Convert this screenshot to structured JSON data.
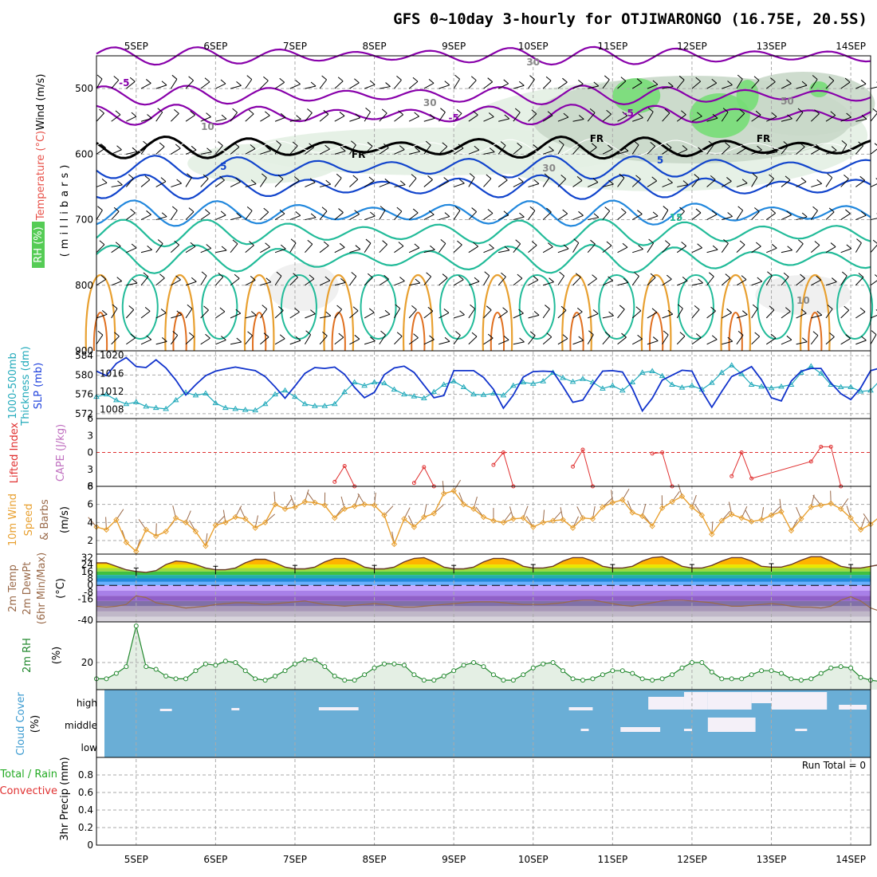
{
  "title": "GFS 0~10day 3-hourly for OTJIWARONGO (16.75E, 20.5S)",
  "date_labels": [
    "5SEP",
    "6SEP",
    "7SEP",
    "8SEP",
    "9SEP",
    "10SEP",
    "11SEP",
    "12SEP",
    "13SEP",
    "14SEP"
  ],
  "colors": {
    "rh_green": "#77dd77",
    "rh_light": "#e3f0e3",
    "rh_mid": "#c9d8c9",
    "temp_purple": "#8800aa",
    "temp_blue": "#1144cc",
    "temp_teal": "#22bb99",
    "temp_orange": "#e8a030",
    "temp_magenta": "#cc0066",
    "freezing": "#000000",
    "slp": "#1133cc",
    "thickness": "#22aabb",
    "lifted_index": "#e03030",
    "wind10m": "#e8a030",
    "dewpoint": "#9a6a4a",
    "rh2m": "#22882e",
    "cloud": "#6aaed6",
    "grid": "#aaaaaa"
  },
  "labels": {
    "wind_ms": "Wind (m/s)",
    "temperature": "Temperature (°C)",
    "rh_pct": "RH (%)",
    "millibars": "(millibars)",
    "thickness_line1": "1000-500mb",
    "thickness_line2": "Thickness (dm)",
    "slp": "SLP (mb)",
    "lifted_index": "Lifted Index",
    "cape": "CAPE (J/kg)",
    "wind10m_line1": "10m Wind",
    "wind10m_line2": "Speed",
    "wind10m_line3": "& Barbs",
    "wind10m_unit": "(m/s)",
    "temp2m_line1": "2m Temp",
    "temp2m_line2": "2m DewPt",
    "temp2m_line3": "(6hr Min/Max)",
    "temp2m_unit": "(°C)",
    "rh2m": "2m RH",
    "rh2m_unit": "(%)",
    "cloud_cover": "Cloud Cover",
    "cloud_unit": "(%)",
    "precip_line1": "Total / Rain",
    "precip_line2": "Convective",
    "precip_main": "3hr Precip (mm)",
    "run_total": "Run Total = 0",
    "contour_labels": [
      "-5",
      "-5",
      "-5",
      "5",
      "5",
      "15",
      "FR",
      "FR",
      "FR",
      "30",
      "30",
      "30",
      "10",
      "10",
      "50"
    ]
  },
  "chart_data": [
    {
      "type": "heatmap",
      "panel": "upper-air cross section (temperature contours, RH shading, wind barbs)",
      "ylabel": "(millibars)",
      "y_ticks": [
        500,
        600,
        700,
        800,
        900
      ],
      "ylim": [
        900,
        450
      ],
      "isotherm_levels_mb": [
        {
          "temp_c": -10,
          "level_mb": 450
        },
        {
          "temp_c": -5,
          "level_mb": 510
        },
        {
          "temp_c": -5,
          "level_mb": 540
        },
        {
          "temp_c": 0,
          "level_mb": 590,
          "label": "FR"
        },
        {
          "temp_c": 5,
          "level_mb": 620
        },
        {
          "temp_c": 5,
          "level_mb": 650
        },
        {
          "temp_c": 10,
          "level_mb": 690
        },
        {
          "temp_c": 15,
          "level_mb": 720
        },
        {
          "temp_c": 20,
          "level_mb": 760
        }
      ],
      "lower_level_temp_contours_c": [
        20,
        25,
        30,
        35
      ]
    },
    {
      "type": "line",
      "panel": "1000-500mb thickness and sea-level pressure",
      "series": [
        {
          "name": "1000-500mb Thickness (dm)",
          "axis": "left",
          "ylim": [
            571,
            585
          ],
          "y_ticks": [
            572,
            576,
            580,
            584
          ],
          "values": [
            575.5,
            576,
            574.8,
            574,
            574.4,
            573.5,
            573.2,
            573,
            574.8,
            576.4,
            575.8,
            576.2,
            574.2,
            573.2,
            573,
            572.8,
            572.7,
            574,
            576,
            576.8,
            575.5,
            574,
            573.6,
            573.6,
            574,
            576.5,
            578.5,
            577.8,
            578.5,
            578.3,
            577,
            576,
            575.6,
            575.2,
            576.5,
            578,
            578.7,
            577.5,
            576,
            575.9,
            576.2,
            575.8,
            577.8,
            578.5,
            578.2,
            578.7,
            580.5,
            579.4,
            578.6,
            579.2,
            578.5,
            577.2,
            577.8,
            576.8,
            578.5,
            580.5,
            580.8,
            579.8,
            578,
            577.4,
            577.8,
            577,
            578.4,
            580.5,
            582,
            580.2,
            578,
            577.6,
            577.3,
            577.6,
            578,
            580.5,
            581.8,
            580.3,
            578,
            577.5,
            577.5,
            576.6,
            576.8,
            579,
            582.3,
            581.5,
            580,
            578,
            577.6,
            578
          ]
        },
        {
          "name": "SLP (mb)",
          "axis": "right",
          "ylim": [
            1006,
            1021
          ],
          "y_ticks": [
            1008,
            1012,
            1016,
            1020
          ],
          "values": [
            1016.5,
            1015.5,
            1018.2,
            1019.5,
            1017.5,
            1017.3,
            1019,
            1017.2,
            1014.5,
            1011.2,
            1013.5,
            1015.5,
            1016.5,
            1017,
            1017.4,
            1017,
            1016.6,
            1015.3,
            1013,
            1010.5,
            1013.2,
            1016,
            1017.3,
            1017.1,
            1017.4,
            1015.8,
            1012.9,
            1010.6,
            1011.8,
            1015.7,
            1017.2,
            1017.6,
            1016.2,
            1013.4,
            1010.6,
            1011.1,
            1016.6,
            1016.6,
            1016.6,
            1015.1,
            1012.5,
            1008.3,
            1011.2,
            1015.2,
            1016.4,
            1016.5,
            1016.4,
            1013.1,
            1009.6,
            1010.1,
            1013.5,
            1016.5,
            1016.6,
            1016.3,
            1012.6,
            1007.7,
            1010.5,
            1014.5,
            1015.6,
            1016.7,
            1016.5,
            1012.1,
            1008.5,
            1012,
            1015.3,
            1016.3,
            1017.5,
            1014.6,
            1010.6,
            1009.9,
            1014.3,
            1016.5,
            1017.1,
            1017.1,
            1013.9,
            1011.5,
            1010.2,
            1012.8,
            1016.6,
            1017.2,
            1016.7,
            1013.5,
            1012.1,
            1015,
            1016.5,
            1017
          ]
        }
      ]
    },
    {
      "type": "line",
      "panel": "Lifted Index and CAPE",
      "series": [
        {
          "name": "Lifted Index",
          "ylim": [
            6,
            -6
          ],
          "y_ticks": [
            -6,
            -3,
            0,
            3,
            6
          ],
          "points": [
            {
              "x_day": 7.5,
              "value": 5.2
            },
            {
              "x_day": 7.625,
              "value": 2.4
            },
            {
              "x_day": 7.75,
              "value": 6
            },
            {
              "x_day": 8.5,
              "value": 5.4
            },
            {
              "x_day": 8.625,
              "value": 2.6
            },
            {
              "x_day": 8.75,
              "value": 6
            },
            {
              "x_day": 9.5,
              "value": 2.2
            },
            {
              "x_day": 9.625,
              "value": 0
            },
            {
              "x_day": 9.75,
              "value": 6
            },
            {
              "x_day": 10.5,
              "value": 2.5
            },
            {
              "x_day": 10.625,
              "value": -0.5
            },
            {
              "x_day": 10.75,
              "value": 6
            },
            {
              "x_day": 11.5,
              "value": 0.2
            },
            {
              "x_day": 11.625,
              "value": 0
            },
            {
              "x_day": 11.75,
              "value": 6
            },
            {
              "x_day": 12.5,
              "value": 4.2
            },
            {
              "x_day": 12.625,
              "value": 0
            },
            {
              "x_day": 12.75,
              "value": 4.6
            },
            {
              "x_day": 13.5,
              "value": 1.6
            },
            {
              "x_day": 13.625,
              "value": -1
            },
            {
              "x_day": 13.75,
              "value": -1
            },
            {
              "x_day": 13.875,
              "value": 6
            }
          ]
        }
      ]
    },
    {
      "type": "line",
      "panel": "10m wind speed and barbs",
      "ylim": [
        0,
        8
      ],
      "y_ticks": [
        2,
        4,
        6,
        8
      ],
      "series": [
        {
          "name": "10m Wind Speed (m/s)",
          "values": [
            3.5,
            3.2,
            4.3,
            1.8,
            0.8,
            3.2,
            2.5,
            3,
            4.5,
            4,
            3,
            1.4,
            3.7,
            4,
            4.6,
            4.4,
            3.4,
            4,
            6,
            5.5,
            5.7,
            6.3,
            6.2,
            5.9,
            4.5,
            5.5,
            5.8,
            6,
            5.9,
            4.8,
            1.6,
            4.4,
            3.5,
            4.6,
            5,
            7.2,
            7.5,
            6,
            5.5,
            4.6,
            4.2,
            4,
            4.4,
            4.5,
            3.5,
            4,
            4.2,
            4.3,
            3.4,
            4.5,
            4.4,
            5.7,
            6.2,
            6.5,
            5.1,
            4.7,
            3.6,
            5.6,
            6.3,
            6.9,
            5.7,
            4.8,
            2.7,
            4.2,
            4.9,
            4.5,
            4.1,
            4.3,
            4.8,
            5.2,
            3.1,
            4.4,
            5.7,
            5.9,
            6.1,
            5.5,
            4.5,
            3.2,
            3.8,
            4.7,
            5.2,
            6.1,
            5,
            6.5,
            6.9,
            6.8
          ]
        }
      ]
    },
    {
      "type": "area",
      "panel": "2m temperature and dewpoint",
      "ylim": [
        -40,
        36
      ],
      "y_ticks": [
        32,
        24,
        16,
        8,
        0,
        -8,
        -16,
        -40
      ],
      "series": [
        {
          "name": "2m Temp (°C)",
          "values": [
            26,
            26,
            22,
            18,
            16,
            15,
            17,
            24,
            28,
            27,
            24,
            20,
            18,
            18,
            20,
            26,
            30,
            30,
            26,
            21,
            19,
            19,
            21,
            27,
            31,
            31,
            27,
            21,
            19,
            19,
            21,
            27,
            31,
            32,
            27,
            21,
            19,
            19,
            21,
            27,
            31,
            31,
            28,
            22,
            20,
            20,
            22,
            28,
            32,
            32,
            28,
            22,
            20,
            20,
            22,
            28,
            32,
            33,
            28,
            22,
            20,
            20,
            23,
            28,
            32,
            32,
            28,
            22,
            21,
            21,
            24,
            29,
            33,
            33,
            28,
            22,
            20,
            20,
            22,
            24,
            23,
            22,
            21,
            21,
            21,
            23
          ]
        },
        {
          "name": "2m DewPt (°C)",
          "values": [
            -24,
            -25,
            -24,
            -22,
            -12,
            -14,
            -20,
            -22,
            -24,
            -26,
            -25,
            -24,
            -22,
            -21,
            -20,
            -20,
            -21,
            -22,
            -21,
            -20,
            -19,
            -18,
            -20,
            -22,
            -23,
            -24,
            -23,
            -22,
            -21,
            -22,
            -24,
            -25,
            -25,
            -24,
            -23,
            -22,
            -21,
            -20,
            -19,
            -19,
            -19,
            -20,
            -21,
            -22,
            -22,
            -22,
            -21,
            -20,
            -18,
            -17,
            -17,
            -19,
            -21,
            -23,
            -24,
            -22,
            -20,
            -18,
            -17,
            -17,
            -18,
            -19,
            -20,
            -22,
            -24,
            -24,
            -23,
            -22,
            -21,
            -22,
            -24,
            -25,
            -25,
            -26,
            -24,
            -17,
            -13,
            -18,
            -26,
            -30,
            -25,
            -22,
            -24,
            -28,
            -33,
            -38
          ]
        }
      ]
    },
    {
      "type": "area",
      "panel": "2m relative humidity",
      "ylim": [
        0,
        50
      ],
      "y_ticks": [
        20
      ],
      "series": [
        {
          "name": "2m RH (%)",
          "values": [
            8,
            8,
            12,
            17,
            47,
            17,
            15,
            10,
            8,
            8,
            14,
            19,
            18,
            21,
            20,
            14,
            8,
            7,
            10,
            14,
            19,
            22,
            22,
            17,
            10,
            7,
            7,
            11,
            16,
            19,
            19,
            18,
            11,
            7,
            7,
            10,
            14,
            18,
            20,
            17,
            11,
            7,
            7,
            11,
            16,
            19,
            20,
            14,
            8,
            7,
            8,
            11,
            14,
            14,
            12,
            8,
            7,
            8,
            11,
            16,
            20,
            20,
            13,
            8,
            8,
            8,
            11,
            14,
            14,
            12,
            8,
            7,
            8,
            12,
            16,
            17,
            16,
            9,
            7,
            6,
            7,
            10,
            11,
            10,
            8,
            5
          ]
        }
      ]
    },
    {
      "type": "heatmap",
      "panel": "cloud cover",
      "rows": [
        "high",
        "middle",
        "low"
      ],
      "note": "mostly full cover shown; high-level gaps on 11SEP-14SEP; middle-level small gaps on 11SEP-13SEP"
    },
    {
      "type": "bar",
      "panel": "3hr precipitation",
      "ylabel": "3hr Precip (mm)",
      "ylim": [
        0,
        1
      ],
      "y_ticks": [
        0,
        0.2,
        0.4,
        0.6,
        0.8
      ],
      "values": [],
      "annotation": "Run Total = 0"
    }
  ]
}
